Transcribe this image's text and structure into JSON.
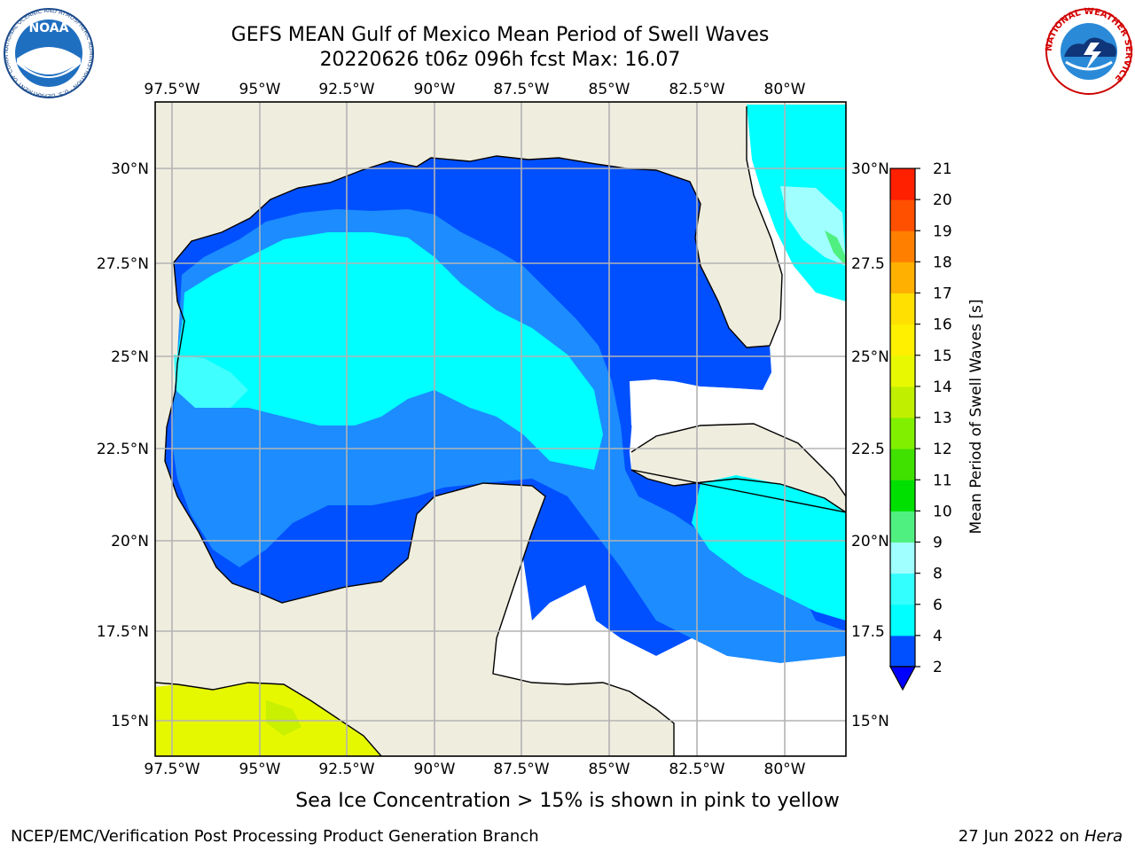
{
  "title": {
    "line1": "GEFS MEAN Gulf of Mexico Mean Period of Swell Waves",
    "line2": "20220626 t06z 096h fcst   Max: 16.07"
  },
  "logos": {
    "left": "NOAA",
    "left_ring": "NATIONAL OCEANIC AND ATMOSPHERIC ADMINISTRATION · U.S. DEPARTMENT OF COMMERCE",
    "right_ring": "NATIONAL WEATHER SERVICE"
  },
  "map": {
    "lon_labels": [
      "97.5°W",
      "95°W",
      "92.5°W",
      "90°W",
      "87.5°W",
      "85°W",
      "82.5°W",
      "80°W"
    ],
    "lat_labels_left": [
      "30°N",
      "27.5°N",
      "25°N",
      "22.5°N",
      "20°N",
      "17.5°N",
      "15°N"
    ],
    "lat_labels_right": [
      "30°N",
      "27.5",
      "25°N",
      "22.5",
      "20°N",
      "17.5",
      "15°N"
    ],
    "colors": {
      "land": "#efedde",
      "coast": "#000000",
      "grid": "#b3b3b3"
    }
  },
  "colorbar": {
    "label": "Mean Period of Swell Waves [s]",
    "ticks": [
      "2",
      "4",
      "6",
      "8",
      "9",
      "10",
      "11",
      "12",
      "13",
      "14",
      "15",
      "16",
      "17",
      "18",
      "19",
      "20",
      "21"
    ],
    "colors": [
      "#0050ff",
      "#00ffff",
      "#33ffff",
      "#a0ffff",
      "#50f080",
      "#00e000",
      "#40e000",
      "#80f000",
      "#c0f000",
      "#e8f800",
      "#fff000",
      "#ffe000",
      "#ffb000",
      "#ff8000",
      "#ff5000",
      "#ff2000",
      "#ff0000"
    ]
  },
  "footer": {
    "note": "Sea Ice Concentration > 15% is shown in pink to yellow",
    "left": "NCEP/EMC/Verification Post Processing Product Generation Branch",
    "right_date": "27 Jun 2022 on ",
    "right_host": "Hera"
  }
}
